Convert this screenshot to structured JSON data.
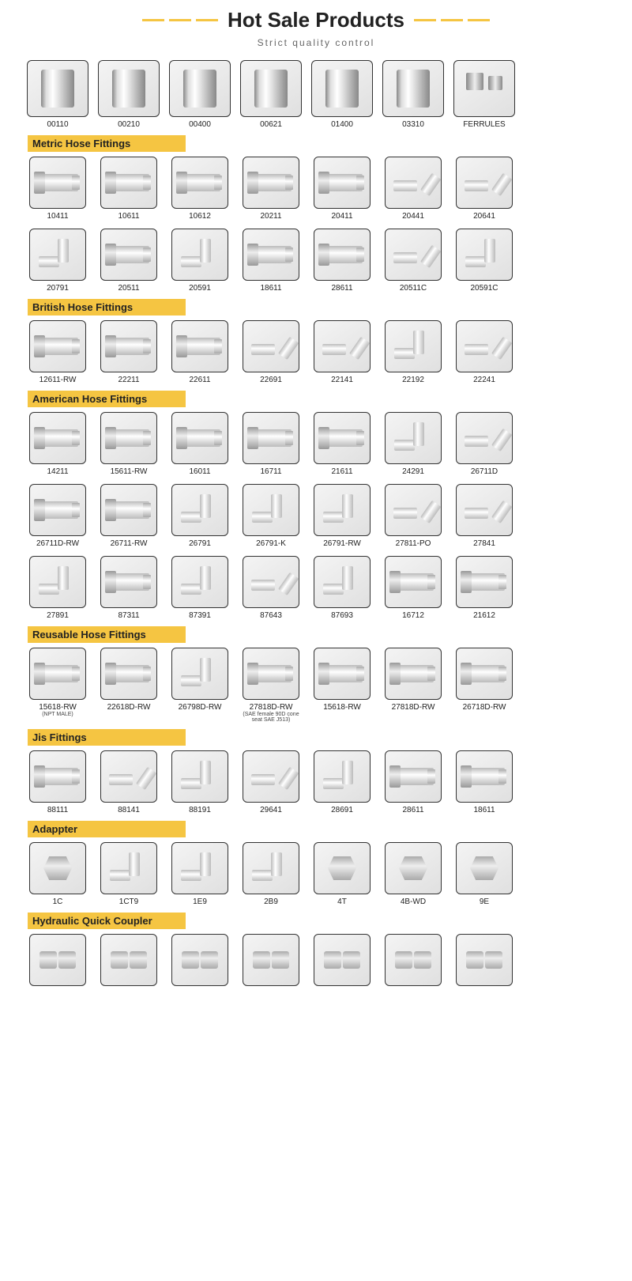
{
  "header": {
    "title": "Hot Sale Products",
    "subtitle": "Strict quality control"
  },
  "colors": {
    "accent": "#f5c542",
    "border": "#333333",
    "text": "#222222"
  },
  "topRow": [
    {
      "label": "00110",
      "shape": "sleeve"
    },
    {
      "label": "00210",
      "shape": "sleeve"
    },
    {
      "label": "00400",
      "shape": "sleeve"
    },
    {
      "label": "00621",
      "shape": "sleeve"
    },
    {
      "label": "01400",
      "shape": "sleeve"
    },
    {
      "label": "03310",
      "shape": "sleeve"
    },
    {
      "label": "FERRULES",
      "shape": "ferrule-group"
    }
  ],
  "sections": [
    {
      "title": "Metric Hose Fittings",
      "rows": [
        [
          {
            "label": "10411",
            "shape": "straight"
          },
          {
            "label": "10611",
            "shape": "straight"
          },
          {
            "label": "10612",
            "shape": "straight"
          },
          {
            "label": "20211",
            "shape": "straight"
          },
          {
            "label": "20411",
            "shape": "straight"
          },
          {
            "label": "20441",
            "shape": "elbow45"
          },
          {
            "label": "20641",
            "shape": "elbow45"
          }
        ],
        [
          {
            "label": "20791",
            "shape": "elbow90"
          },
          {
            "label": "20511",
            "shape": "straight"
          },
          {
            "label": "20591",
            "shape": "elbow90"
          },
          {
            "label": "18611",
            "shape": "straight"
          },
          {
            "label": "28611",
            "shape": "straight"
          },
          {
            "label": "20511C",
            "shape": "elbow45"
          },
          {
            "label": "20591C",
            "shape": "elbow90"
          }
        ]
      ]
    },
    {
      "title": "British Hose Fittings",
      "rows": [
        [
          {
            "label": "12611-RW",
            "shape": "straight"
          },
          {
            "label": "22211",
            "shape": "straight"
          },
          {
            "label": "22611",
            "shape": "straight"
          },
          {
            "label": "22691",
            "shape": "elbow45"
          },
          {
            "label": "22141",
            "shape": "elbow45"
          },
          {
            "label": "22192",
            "shape": "elbow90"
          },
          {
            "label": "22241",
            "shape": "elbow45"
          }
        ]
      ]
    },
    {
      "title": "American Hose Fittings",
      "rows": [
        [
          {
            "label": "14211",
            "shape": "straight"
          },
          {
            "label": "15611-RW",
            "shape": "straight"
          },
          {
            "label": "16011",
            "shape": "straight"
          },
          {
            "label": "16711",
            "shape": "straight"
          },
          {
            "label": "21611",
            "shape": "straight"
          },
          {
            "label": "24291",
            "shape": "elbow90"
          },
          {
            "label": "26711D",
            "shape": "elbow45"
          }
        ],
        [
          {
            "label": "26711D-RW",
            "shape": "straight"
          },
          {
            "label": "26711-RW",
            "shape": "straight"
          },
          {
            "label": "26791",
            "shape": "elbow90"
          },
          {
            "label": "26791-K",
            "shape": "elbow90"
          },
          {
            "label": "26791-RW",
            "shape": "elbow90"
          },
          {
            "label": "27811-PO",
            "shape": "elbow45"
          },
          {
            "label": "27841",
            "shape": "elbow45"
          }
        ],
        [
          {
            "label": "27891",
            "shape": "elbow90"
          },
          {
            "label": "87311",
            "shape": "straight"
          },
          {
            "label": "87391",
            "shape": "elbow90"
          },
          {
            "label": "87643",
            "shape": "elbow45"
          },
          {
            "label": "87693",
            "shape": "elbow90"
          },
          {
            "label": "16712",
            "shape": "straight"
          },
          {
            "label": "21612",
            "shape": "straight"
          }
        ]
      ]
    },
    {
      "title": "Reusable Hose Fittings",
      "rows": [
        [
          {
            "label": "15618-RW",
            "sublabel": "(NPT MALE)",
            "shape": "straight"
          },
          {
            "label": "22618D-RW",
            "shape": "straight"
          },
          {
            "label": "26798D-RW",
            "shape": "elbow90"
          },
          {
            "label": "27818D-RW",
            "sublabel": "(SAE female 90D cone seat SAE J513)",
            "shape": "straight"
          },
          {
            "label": "15618-RW",
            "shape": "straight"
          },
          {
            "label": "27818D-RW",
            "shape": "straight"
          },
          {
            "label": "26718D-RW",
            "shape": "straight"
          }
        ]
      ]
    },
    {
      "title": "Jis Fittings",
      "rows": [
        [
          {
            "label": "88111",
            "shape": "straight"
          },
          {
            "label": "88141",
            "shape": "elbow45"
          },
          {
            "label": "88191",
            "shape": "elbow90"
          },
          {
            "label": "29641",
            "shape": "elbow45"
          },
          {
            "label": "28691",
            "shape": "elbow90"
          },
          {
            "label": "28611",
            "shape": "straight"
          },
          {
            "label": "18611",
            "shape": "straight"
          }
        ]
      ]
    },
    {
      "title": "Adappter",
      "rows": [
        [
          {
            "label": "1C",
            "shape": "nut"
          },
          {
            "label": "1CT9",
            "shape": "elbow90"
          },
          {
            "label": "1E9",
            "shape": "elbow90"
          },
          {
            "label": "2B9",
            "shape": "elbow90"
          },
          {
            "label": "4T",
            "shape": "nut"
          },
          {
            "label": "4B-WD",
            "shape": "nut"
          },
          {
            "label": "9E",
            "shape": "nut"
          }
        ]
      ]
    },
    {
      "title": "Hydraulic Quick Coupler",
      "rows": [
        [
          {
            "label": "",
            "shape": "pair"
          },
          {
            "label": "",
            "shape": "pair"
          },
          {
            "label": "",
            "shape": "pair"
          },
          {
            "label": "",
            "shape": "pair"
          },
          {
            "label": "",
            "shape": "pair"
          },
          {
            "label": "",
            "shape": "pair"
          },
          {
            "label": "",
            "shape": "pair"
          }
        ]
      ]
    }
  ]
}
